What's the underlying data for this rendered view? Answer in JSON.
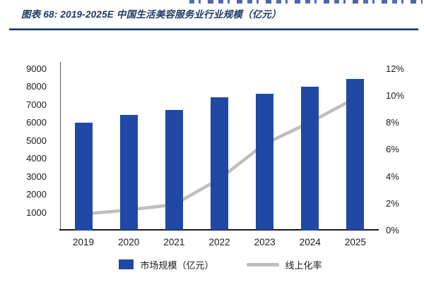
{
  "header": {
    "title": "图表 68:  2019-2025E 中国生活美容服务业行业规模（亿元）",
    "title_color": "#1F3864",
    "divider_color": "#1F3864",
    "clipped_text_note": "bottom edge of a clipped text line is visible above the title (illegible)"
  },
  "chart_data": {
    "type": "bar+line",
    "title": "2019-2025E 中国生活美容服务业行业规模（亿元）",
    "categories": [
      "2019",
      "2020",
      "2021",
      "2022",
      "2023",
      "2024",
      "2025"
    ],
    "series": [
      {
        "name": "市场规模（亿元）",
        "type": "bar",
        "y_axis": "left",
        "color": "#1F49A4",
        "values": [
          6000,
          6400,
          6700,
          7400,
          7600,
          8000,
          8400
        ]
      },
      {
        "name": "线上化率",
        "type": "line",
        "y_axis": "right",
        "color": "#BFBFBF",
        "values_percent": [
          1.2,
          1.5,
          1.9,
          3.8,
          6.4,
          8.0,
          9.8
        ]
      }
    ],
    "left_axis": {
      "min": 0,
      "max": 9000,
      "tick_step": 1000,
      "tick_values": [
        9000,
        8000,
        7000,
        6000,
        5000,
        4000,
        3000,
        2000,
        1000
      ],
      "tick_labels": [
        "9000",
        "8000",
        "7000",
        "6000",
        "5000",
        "4000",
        "3000",
        "2000",
        "1000"
      ]
    },
    "right_axis": {
      "min": 0,
      "max": 12,
      "tick_step": 2,
      "tick_values": [
        12,
        10,
        8,
        6,
        4,
        2,
        0
      ],
      "tick_labels": [
        "12%",
        "10%",
        "8%",
        "6%",
        "4%",
        "2%",
        "0%"
      ]
    },
    "grid": false,
    "legend_position": "bottom",
    "axis_color": "#1a1a1a"
  }
}
